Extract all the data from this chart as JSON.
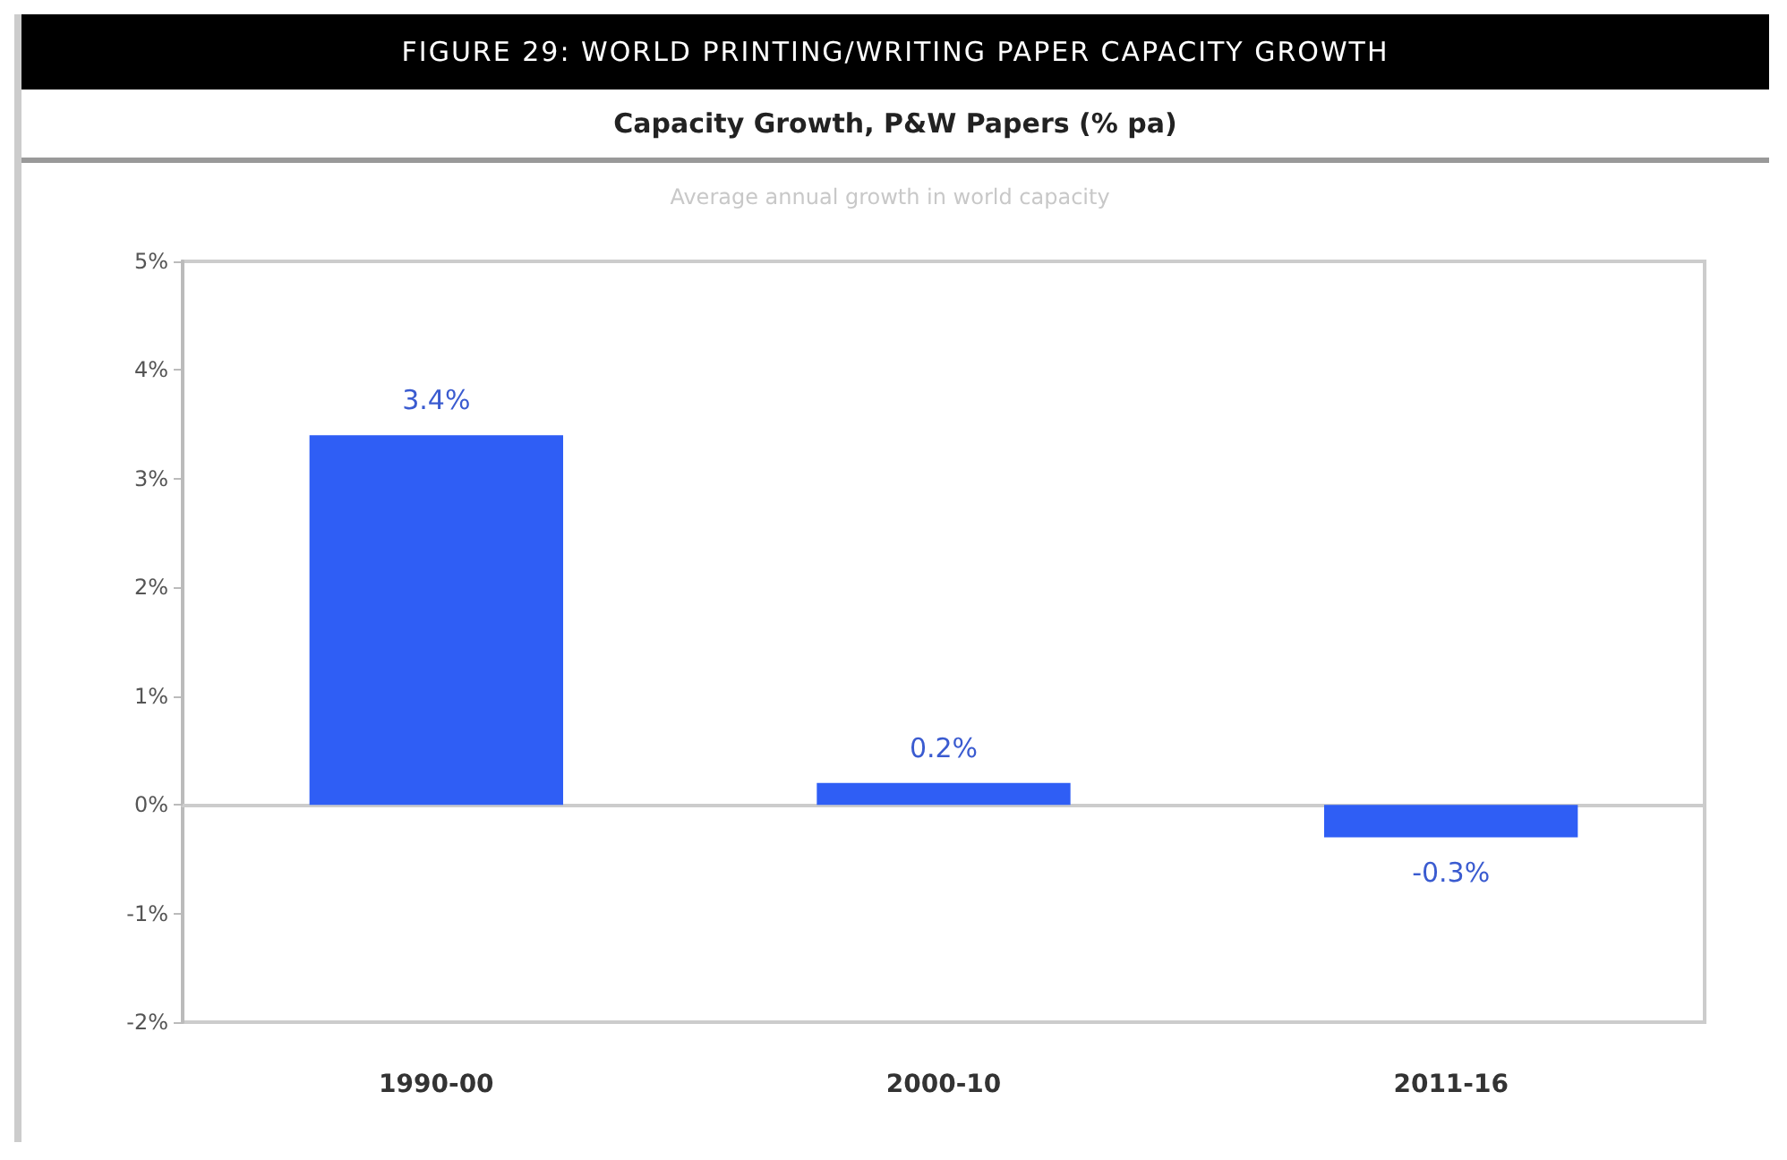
{
  "chart_data": {
    "type": "bar",
    "title": "FIGURE 29: WORLD PRINTING/WRITING PAPER CAPACITY GROWTH",
    "subtitle": "Capacity Growth, P&W Papers (% pa)",
    "ylabel": "Average annual growth in world capacity",
    "categories": [
      "1990-00",
      "2000-10",
      "2011-16"
    ],
    "values": [
      3.4,
      0.2,
      -0.3
    ],
    "color": "#2f5ef5",
    "value_labels": [
      "3.4%",
      "0.2%",
      "-0.3%"
    ],
    "ylim": [
      -2,
      5
    ],
    "yticks": [
      {
        "value": -2,
        "label": "-2%"
      },
      {
        "value": -1,
        "label": "-1%"
      },
      {
        "value": 0,
        "label": "0%"
      },
      {
        "value": 1,
        "label": "1%"
      },
      {
        "value": 2,
        "label": "2%"
      },
      {
        "value": 3,
        "label": "3%"
      },
      {
        "value": 4,
        "label": "4%"
      },
      {
        "value": 5,
        "label": "5%"
      }
    ],
    "data_labels": false
  }
}
